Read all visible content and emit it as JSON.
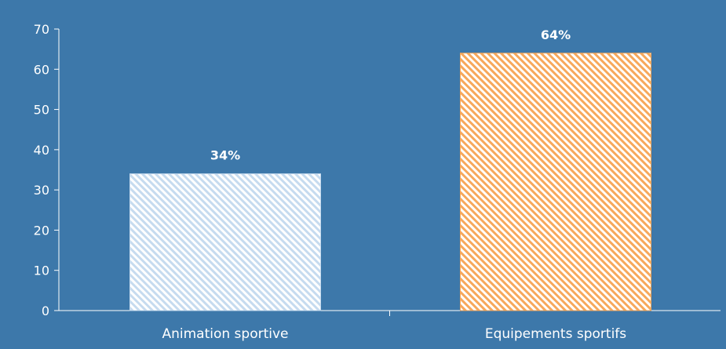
{
  "chart_data": {
    "type": "bar",
    "title": "",
    "xlabel": "",
    "ylabel": "",
    "categories": [
      "Animation sportive",
      "Equipements sportifs"
    ],
    "values": [
      34,
      64
    ],
    "data_labels": [
      "34%",
      "64%"
    ],
    "ylim": [
      0,
      70
    ],
    "yticks": [
      "0",
      "10",
      "20",
      "30",
      "40",
      "50",
      "60",
      "70"
    ],
    "grid": false,
    "legend": "none",
    "colors": {
      "background": "#3d78aa",
      "axis": "#ffffff",
      "tick_text": "#ffffff",
      "label_text": "#ffffff",
      "bar_1": "#c6dbef",
      "bar_2": "#f7a85b"
    }
  }
}
